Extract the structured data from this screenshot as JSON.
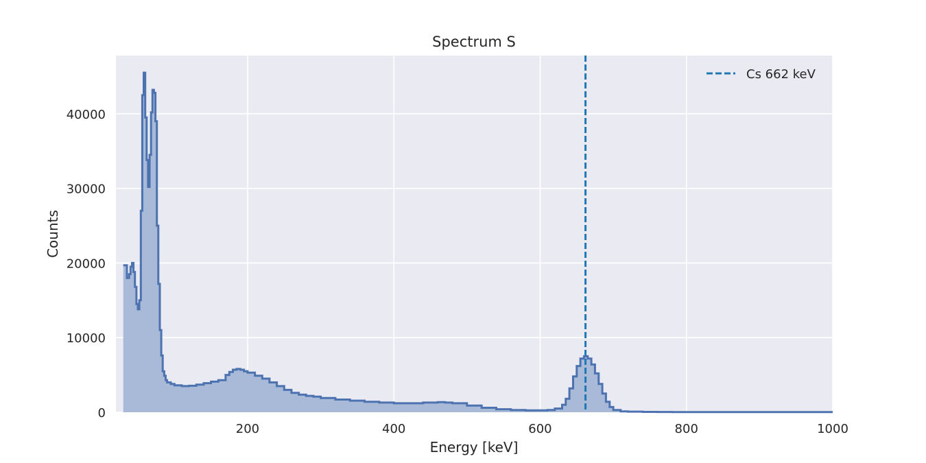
{
  "chart_data": {
    "type": "area",
    "title": "Spectrum S",
    "xlabel": "Energy [keV]",
    "ylabel": "Counts",
    "xlim": [
      20,
      1000
    ],
    "ylim": [
      0,
      47800
    ],
    "xticks": [
      200,
      400,
      600,
      800,
      1000
    ],
    "yticks": [
      0,
      10000,
      20000,
      30000,
      40000
    ],
    "grid": true,
    "legend_position": "top-right",
    "colors": {
      "background": "#eaeaf2",
      "grid": "#ffffff",
      "series": "#4c72b0",
      "fill": "#a9b9d8",
      "reference_line": "#1f77b4"
    },
    "series": [
      {
        "style": "step-filled",
        "x": [
          30,
          35,
          38,
          40,
          42,
          44,
          46,
          48,
          50,
          52,
          54,
          56,
          58,
          60,
          62,
          64,
          66,
          68,
          70,
          72,
          74,
          76,
          78,
          80,
          82,
          84,
          86,
          88,
          90,
          95,
          100,
          110,
          120,
          130,
          140,
          150,
          160,
          170,
          175,
          180,
          185,
          190,
          195,
          200,
          210,
          220,
          230,
          240,
          250,
          260,
          270,
          280,
          290,
          300,
          320,
          340,
          360,
          380,
          400,
          420,
          440,
          460,
          470,
          480,
          500,
          520,
          540,
          560,
          580,
          600,
          610,
          620,
          630,
          635,
          640,
          645,
          650,
          655,
          660,
          665,
          670,
          675,
          680,
          685,
          690,
          695,
          700,
          710,
          720,
          740,
          760,
          780,
          800,
          850,
          900,
          950,
          1000
        ],
        "y": [
          19700,
          18000,
          18500,
          19500,
          20000,
          18800,
          16800,
          14500,
          13800,
          15000,
          27000,
          42500,
          45500,
          39500,
          33800,
          30200,
          34500,
          40200,
          43200,
          42800,
          39000,
          25000,
          17200,
          11000,
          7600,
          5500,
          4900,
          4300,
          4000,
          3800,
          3600,
          3500,
          3550,
          3700,
          3900,
          4100,
          4300,
          5000,
          5400,
          5700,
          5800,
          5700,
          5500,
          5300,
          4900,
          4500,
          4000,
          3500,
          3000,
          2600,
          2350,
          2200,
          2100,
          1900,
          1700,
          1550,
          1400,
          1300,
          1200,
          1200,
          1300,
          1350,
          1300,
          1200,
          900,
          600,
          400,
          300,
          250,
          250,
          300,
          500,
          1000,
          1800,
          3200,
          4800,
          6200,
          7200,
          7500,
          7200,
          6400,
          5200,
          3800,
          2500,
          1400,
          700,
          300,
          120,
          80,
          50,
          40,
          30,
          30,
          20,
          20,
          15,
          15
        ]
      }
    ],
    "reference_lines": [
      {
        "x": 662,
        "label": "Cs 662 keV",
        "style": "dashed"
      }
    ]
  }
}
